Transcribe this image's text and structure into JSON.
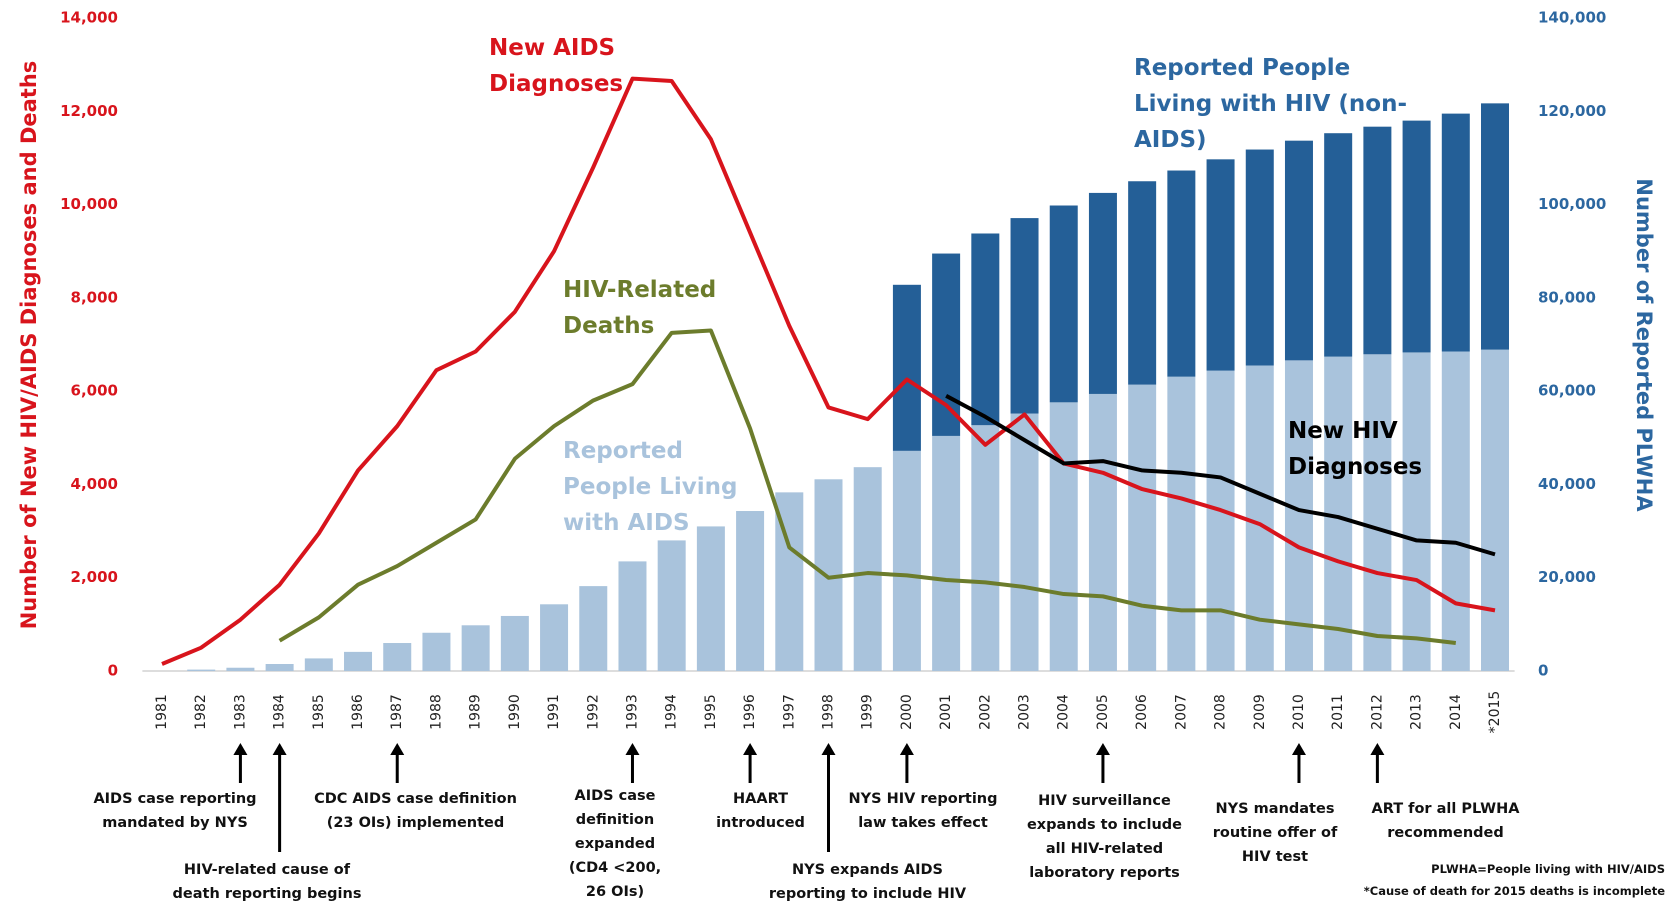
{
  "chart_data": {
    "type": "combo",
    "ylabel": "Number of New HIV/AIDS Diagnoses and Deaths",
    "y2label": "Number of Reported PLWHA",
    "categories": [
      "1981",
      "1982",
      "1983",
      "1984",
      "1985",
      "1986",
      "1987",
      "1988",
      "1989",
      "1990",
      "1991",
      "1992",
      "1993",
      "1994",
      "1995",
      "1996",
      "1997",
      "1998",
      "1999",
      "2000",
      "2001",
      "2002",
      "2003",
      "2004",
      "2005",
      "2006",
      "2007",
      "2008",
      "2009",
      "2010",
      "2011",
      "2012",
      "2013",
      "2014",
      "*2015"
    ],
    "ylim": [
      0,
      14000
    ],
    "yticks": [
      0,
      {
        "value": 2000,
        "label": "2,000"
      },
      {
        "value": 4000,
        "label": "4,000"
      },
      {
        "value": 6000,
        "label": "6,000"
      },
      {
        "value": 8000,
        "label": "8,000"
      },
      {
        "value": 10000,
        "label": "10,000"
      },
      {
        "value": 12000,
        "label": "12,000"
      },
      {
        "value": 14000,
        "label": "14,000"
      }
    ],
    "y2lim": [
      0,
      140000
    ],
    "y2ticks": [
      0,
      {
        "value": 20000,
        "label": "20,000"
      },
      {
        "value": 40000,
        "label": "40,000"
      },
      {
        "value": 60000,
        "label": "60,000"
      },
      {
        "value": 80000,
        "label": "80,000"
      },
      {
        "value": 100000,
        "label": "100,000"
      },
      {
        "value": 120000,
        "label": "120,000"
      },
      {
        "value": 140000,
        "label": "140,000"
      }
    ],
    "series": [
      {
        "name": "Reported People Living with AIDS",
        "type": "bar",
        "axis": "y2",
        "color": "#a9c3dc",
        "values": [
          null,
          300,
          700,
          1500,
          2700,
          4100,
          6000,
          8200,
          9800,
          11800,
          14300,
          18200,
          23500,
          28000,
          31000,
          34300,
          38300,
          41100,
          43700,
          47200,
          50400,
          52700,
          55200,
          57600,
          59400,
          61400,
          63100,
          64400,
          65500,
          66600,
          67400,
          67900,
          68300,
          68500,
          68900
        ]
      },
      {
        "name": "Reported People Living with HIV (non-AIDS)",
        "type": "bar",
        "axis": "y2",
        "color": "#245f97",
        "values": [
          null,
          null,
          null,
          null,
          null,
          null,
          null,
          null,
          null,
          null,
          null,
          null,
          null,
          null,
          null,
          null,
          null,
          null,
          null,
          35600,
          39100,
          41100,
          41900,
          42200,
          43100,
          43600,
          44200,
          45300,
          46300,
          47100,
          47900,
          48800,
          49700,
          51000,
          52800
        ]
      },
      {
        "name": "New AIDS Diagnoses",
        "type": "line",
        "color": "#d8141c",
        "values": [
          150,
          500,
          1100,
          1850,
          2950,
          4300,
          5250,
          6450,
          6850,
          7700,
          9000,
          10800,
          12700,
          12650,
          11400,
          9400,
          7400,
          5650,
          5400,
          6250,
          5700,
          4850,
          5500,
          4450,
          4250,
          3900,
          3700,
          3450,
          3150,
          2650,
          2350,
          2100,
          1950,
          1450,
          1300
        ]
      },
      {
        "name": "HIV-Related Deaths",
        "type": "line",
        "color": "#6c7c2c",
        "values": [
          null,
          null,
          null,
          650,
          1150,
          1850,
          2250,
          2750,
          3250,
          4550,
          5250,
          5800,
          6150,
          7250,
          7300,
          5200,
          2650,
          2000,
          2100,
          2050,
          1950,
          1900,
          1800,
          1650,
          1600,
          1400,
          1300,
          1300,
          1100,
          1000,
          900,
          750,
          700,
          600,
          null
        ]
      },
      {
        "name": "New HIV Diagnoses",
        "type": "line",
        "color": "#000000",
        "values": [
          null,
          null,
          null,
          null,
          null,
          null,
          null,
          null,
          null,
          null,
          null,
          null,
          null,
          null,
          null,
          null,
          null,
          null,
          null,
          null,
          5900,
          5450,
          4950,
          4450,
          4500,
          4300,
          4250,
          4150,
          3800,
          3450,
          3300,
          3050,
          2800,
          2750,
          2500
        ]
      }
    ],
    "annotations": [
      {
        "at": "1983",
        "text": "AIDS case reporting mandated by NYS"
      },
      {
        "at": "1984",
        "text": "HIV-related cause of death reporting begins"
      },
      {
        "at": "1987",
        "text": "CDC AIDS case definition (23 OIs) implemented"
      },
      {
        "at": "1993",
        "text": "AIDS case definition expanded (CD4 <200, 26 OIs)"
      },
      {
        "at": "1996",
        "text": "HAART introduced"
      },
      {
        "at": "1998",
        "text": "NYS expands AIDS reporting to include HIV"
      },
      {
        "at": "2000",
        "text": "NYS HIV reporting law takes effect"
      },
      {
        "at": "2005",
        "text": "HIV surveillance expands to include all HIV-related laboratory reports"
      },
      {
        "at": "2010",
        "text": "NYS mandates routine offer of HIV test"
      },
      {
        "at": "2012",
        "text": "ART for all PLWHA recommended"
      }
    ],
    "footnotes": [
      "PLWHA=People living with HIV/AIDS",
      "*Cause of death for 2015 deaths is incomplete"
    ]
  }
}
